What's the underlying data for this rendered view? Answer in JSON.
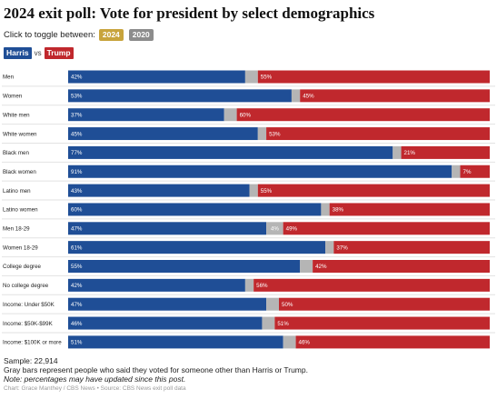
{
  "title": "2024 exit poll: Vote for president by select demographics",
  "toggle": {
    "prompt": "Click to toggle between:",
    "options": [
      {
        "label": "2024",
        "color": "#c8a43c",
        "selected": true
      },
      {
        "label": "2020",
        "color": "#8c8c8c",
        "selected": false
      }
    ]
  },
  "legend": {
    "harris": {
      "label": "Harris",
      "color": "#1f4e96"
    },
    "vs": "vs",
    "trump": {
      "label": "Trump",
      "color": "#c0282d"
    }
  },
  "colors": {
    "harris": "#1f4e96",
    "trump": "#c0282d",
    "other": "#b5b5b5",
    "separator": "#e2e2e2"
  },
  "chart_data": {
    "type": "bar",
    "orientation": "horizontal",
    "stacked": true,
    "categories": [
      "Men",
      "Women",
      "White men",
      "White women",
      "Black men",
      "Black women",
      "Latino men",
      "Latino women",
      "Men 18-29",
      "Women 18-29",
      "College degree",
      "No college degree",
      "Income: Under $50K",
      "Income: $50K-$99K",
      "Income: $100K or more"
    ],
    "series": [
      {
        "name": "Harris",
        "values": [
          42,
          53,
          37,
          45,
          77,
          91,
          43,
          60,
          47,
          61,
          55,
          42,
          47,
          46,
          51
        ],
        "labels": [
          "42%",
          "53%",
          "37%",
          "45%",
          "77%",
          "91%",
          "43%",
          "60%",
          "47%",
          "61%",
          "55%",
          "42%",
          "47%",
          "46%",
          "51%"
        ]
      },
      {
        "name": "Other",
        "values": [
          3,
          2,
          3,
          2,
          2,
          2,
          2,
          2,
          4,
          2,
          3,
          2,
          3,
          3,
          3
        ],
        "labels": [
          "",
          "",
          "",
          "",
          "",
          "",
          "",
          "",
          "4%",
          "",
          "",
          "",
          "",
          "",
          ""
        ]
      },
      {
        "name": "Trump",
        "values": [
          55,
          45,
          60,
          53,
          21,
          7,
          55,
          38,
          49,
          37,
          42,
          56,
          50,
          51,
          46
        ],
        "labels": [
          "55%",
          "45%",
          "60%",
          "53%",
          "21%",
          "7%",
          "55%",
          "38%",
          "49%",
          "37%",
          "42%",
          "56%",
          "50%",
          "51%",
          "46%"
        ]
      }
    ],
    "xlim": [
      0,
      100
    ],
    "grid": false,
    "legend_position": "top-left"
  },
  "footer": {
    "sample": "Sample: 22,914",
    "gray_note": "Gray bars represent people who said they voted for someone other than Harris or Trump.",
    "italic_note": "Note: percentages may have updated since this post.",
    "credit": "Chart: Grace Manthey / CBS News • Source: CBS News exit poll data"
  }
}
